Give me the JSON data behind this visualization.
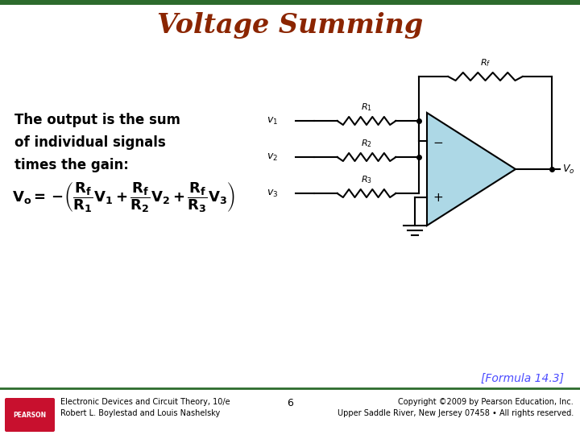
{
  "title": "Voltage Summing",
  "title_color": "#8B2500",
  "title_fontsize": 24,
  "bg_color": "#FFFFFF",
  "body_text": "The output is the sum\nof individual signals\ntimes the gain:",
  "body_fontsize": 12,
  "body_fontweight": "bold",
  "formula_label": "[Formula 14.3]",
  "formula_color": "#4B4BFF",
  "footer_left": "Electronic Devices and Circuit Theory, 10/e\nRobert L. Boylestad and Louis Nashelsky",
  "footer_center": "6",
  "footer_right": "Copyright ©2009 by Pearson Education, Inc.\nUpper Saddle River, New Jersey 07458 • All rights reserved.",
  "footer_fontsize": 7,
  "top_bar_color": "#2D6B2D",
  "pearson_box_color": "#C8102E",
  "opamp_face": "#ADD8E6",
  "wire_color": "#000000",
  "lw": 1.5
}
